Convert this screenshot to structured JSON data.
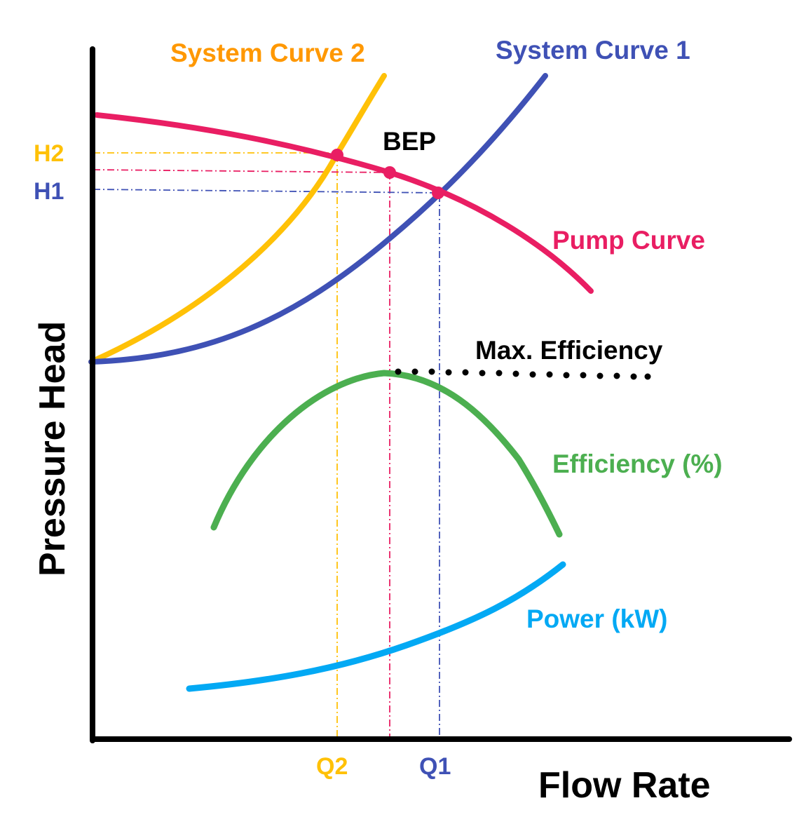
{
  "chart_data": {
    "type": "line",
    "xlabel": "Flow Rate",
    "ylabel": "Pressure Head",
    "colors": {
      "axis": "#000000",
      "pump": "#e91e63",
      "system1": "#3f51b5",
      "system2": "#ffc107",
      "efficiency": "#4caf50",
      "power": "#03a9f4",
      "text": "#000000",
      "system2_label": "#ff9800"
    },
    "series": [
      {
        "name": "Pump Curve",
        "color": "#e91e63"
      },
      {
        "name": "System Curve 1",
        "color": "#3f51b5"
      },
      {
        "name": "System Curve 2",
        "color": "#ffc107"
      },
      {
        "name": "Efficiency (%)",
        "color": "#4caf50"
      },
      {
        "name": "Power (kW)",
        "color": "#03a9f4"
      }
    ],
    "annotations": {
      "bep": "BEP",
      "max_efficiency": "Max. Efficiency",
      "h1": "H1",
      "h2": "H2",
      "q1": "Q1",
      "q2": "Q2"
    }
  }
}
